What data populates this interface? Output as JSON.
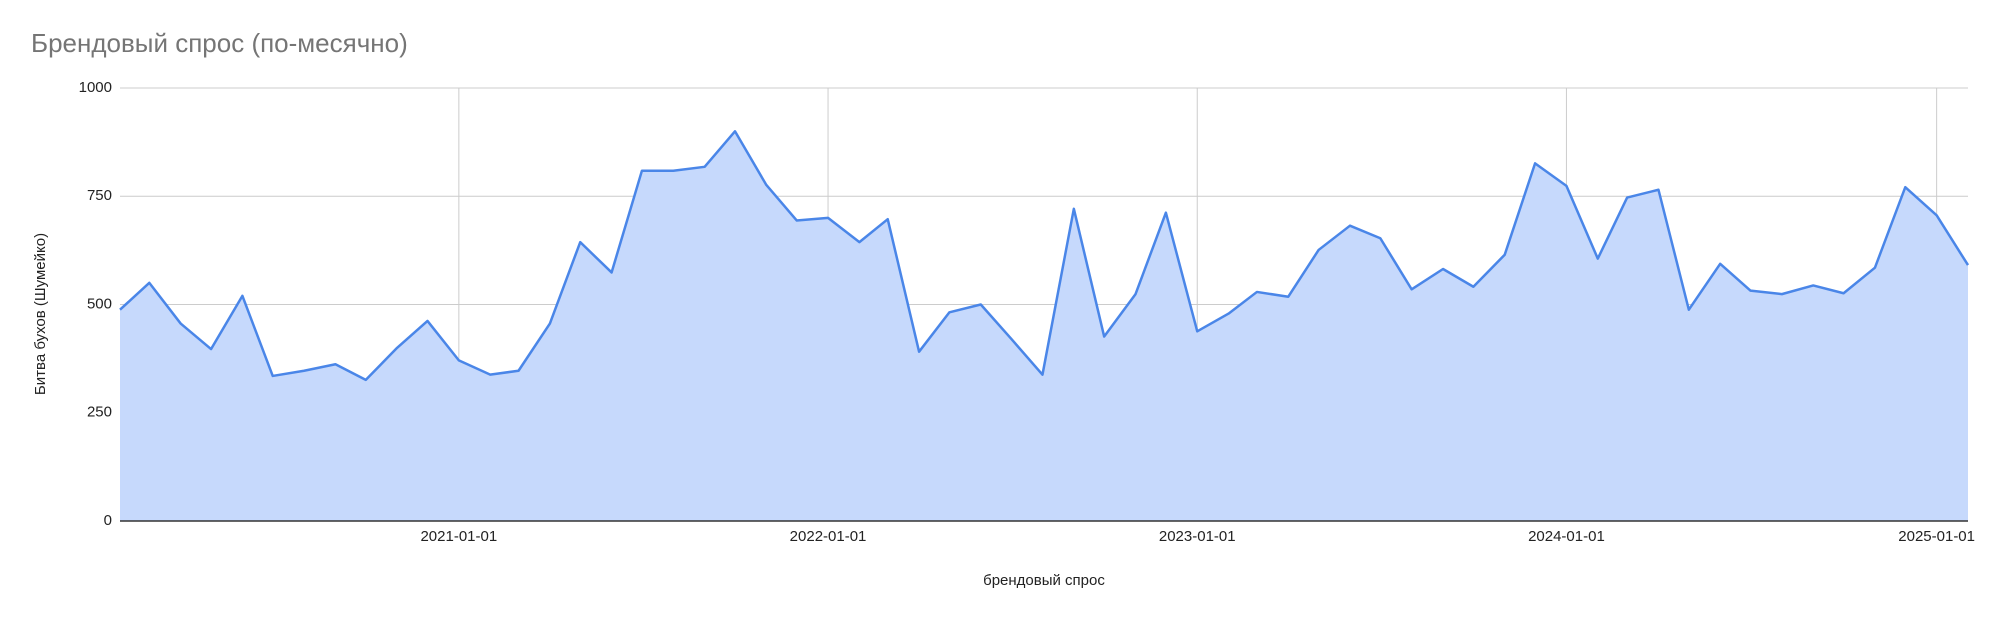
{
  "chart_data": {
    "type": "area",
    "title": "Брендовый спрос (по-месячно)",
    "x_label": "брендовый спрос",
    "y_label": "Битва бухов (Шумейко)",
    "x": [
      "2020-02-01",
      "2020-03-01",
      "2020-04-01",
      "2020-05-01",
      "2020-06-01",
      "2020-07-01",
      "2020-08-01",
      "2020-09-01",
      "2020-10-01",
      "2020-11-01",
      "2020-12-01",
      "2021-01-01",
      "2021-02-01",
      "2021-03-01",
      "2021-04-01",
      "2021-05-01",
      "2021-06-01",
      "2021-07-01",
      "2021-08-01",
      "2021-09-01",
      "2021-10-01",
      "2021-11-01",
      "2021-12-01",
      "2022-01-01",
      "2022-02-01",
      "2022-03-01",
      "2022-04-01",
      "2022-05-01",
      "2022-06-01",
      "2022-07-01",
      "2022-08-01",
      "2022-09-01",
      "2022-10-01",
      "2022-11-01",
      "2022-12-01",
      "2023-01-01",
      "2023-02-01",
      "2023-03-01",
      "2023-04-01",
      "2023-05-01",
      "2023-06-01",
      "2023-07-01",
      "2023-08-01",
      "2023-09-01",
      "2023-10-01",
      "2023-11-01",
      "2023-12-01",
      "2024-01-01",
      "2024-02-01",
      "2024-03-01",
      "2024-04-01",
      "2024-05-01",
      "2024-06-01",
      "2024-07-01",
      "2024-08-01",
      "2024-09-01",
      "2024-10-01",
      "2024-11-01",
      "2024-12-01",
      "2025-01-01",
      "2025-02-01"
    ],
    "series": [
      {
        "name": "Битва бухов (Шумейко)",
        "color": "#4a86e8",
        "fill": "#c6d9fc",
        "values": [
          488,
          550,
          456,
          397,
          520,
          335,
          347,
          362,
          326,
          400,
          462,
          371,
          338,
          347,
          456,
          644,
          574,
          809,
          809,
          818,
          900,
          776,
          694,
          700,
          644,
          697,
          391,
          482,
          500,
          421,
          338,
          721,
          426,
          524,
          712,
          438,
          479,
          529,
          518,
          626,
          682,
          653,
          535,
          582,
          541,
          615,
          826,
          774,
          606,
          747,
          765,
          488,
          594,
          532,
          524,
          544,
          526,
          585,
          771,
          706,
          591
        ]
      }
    ],
    "xlim": [
      "2020-02-01",
      "2025-02-01"
    ],
    "xticks": [
      "2021-01-01",
      "2022-01-01",
      "2023-01-01",
      "2024-01-01",
      "2025-01-01"
    ],
    "ylim": [
      0,
      1000
    ],
    "yticks": [
      0,
      250,
      500,
      750,
      1000
    ],
    "grid": true
  }
}
